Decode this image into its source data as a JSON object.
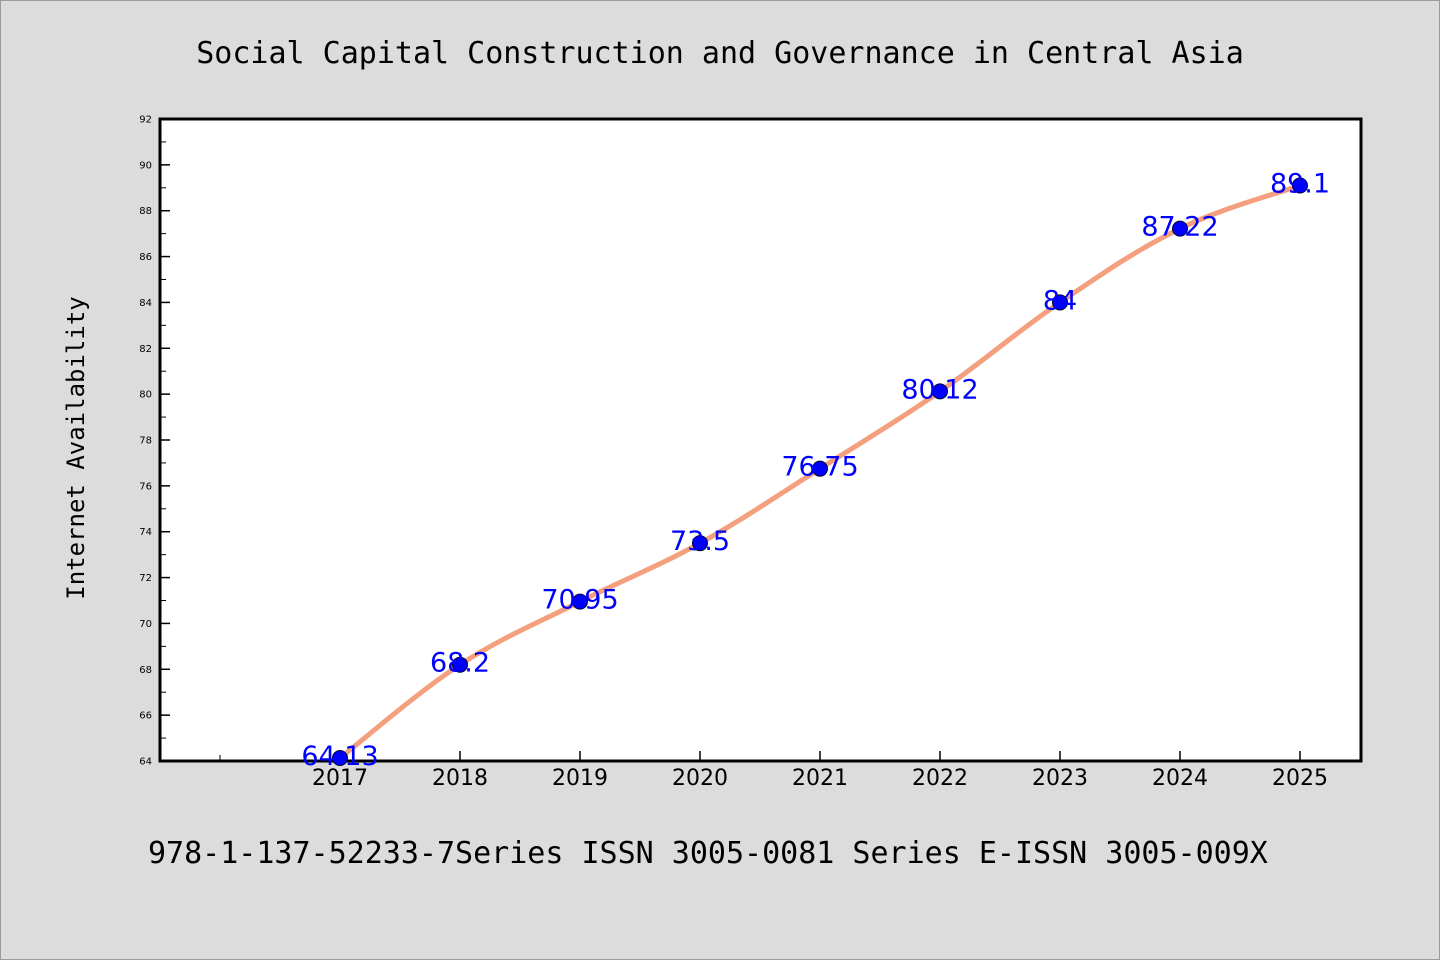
{
  "chart_data": {
    "type": "line",
    "title": "Social Capital Construction and Governance in Central Asia",
    "xlabel": "",
    "ylabel": "Internet Availability",
    "categories": [
      "2017",
      "2018",
      "2019",
      "2020",
      "2021",
      "2022",
      "2023",
      "2024",
      "2025"
    ],
    "series": [
      {
        "values": [
          64.13,
          68.2,
          70.95,
          73.5,
          76.75,
          80.12,
          84,
          87.22,
          89.1
        ],
        "data_labels": [
          "64.13",
          "68.2",
          "70.95",
          "73.5",
          "76.75",
          "80.12",
          "84",
          "87.22",
          "89.1"
        ]
      }
    ],
    "ylim": [
      64,
      92
    ],
    "yticks": [
      "64",
      "66",
      "68",
      "70",
      "72",
      "74",
      "76",
      "78",
      "80",
      "82",
      "84",
      "86",
      "88",
      "90",
      "92"
    ],
    "grid": false,
    "colors": {
      "line": "#f4a07e",
      "marker": "#0000ff",
      "data_label": "#0000ff",
      "background": "#dcdcdc",
      "plot_background": "#ffffff"
    },
    "footer": "978-1-137-52233-7Series ISSN 3005-0081 Series E-ISSN 3005-009X"
  }
}
